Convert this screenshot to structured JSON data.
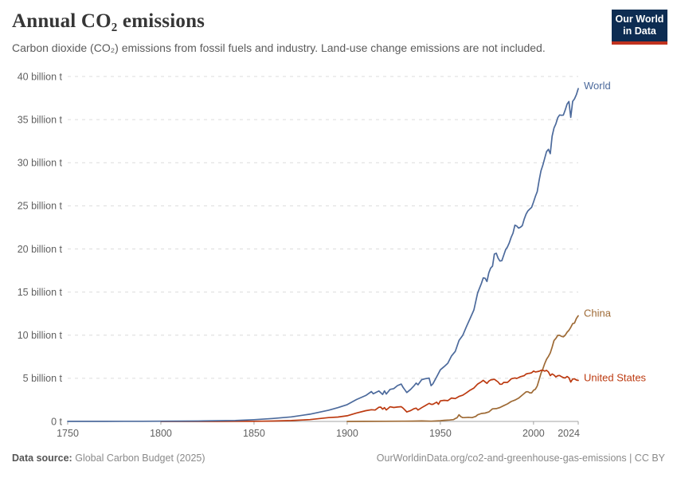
{
  "header": {
    "title": "Annual CO₂ emissions",
    "subtitle": "Carbon dioxide (CO₂) emissions from fossil fuels and industry. Land-use change emissions are not included."
  },
  "logo": {
    "line1": "Our World",
    "line2": "in Data",
    "bg_color": "#0d2c52",
    "accent_color": "#c0321f"
  },
  "footer": {
    "datasource_label": "Data source:",
    "datasource_value": "Global Carbon Budget (2025)",
    "note": "OurWorldinData.org/co2-and-greenhouse-gas-emissions | CC BY"
  },
  "chart_data": {
    "type": "line",
    "title": "Annual CO₂ emissions",
    "xlabel": "",
    "ylabel": "",
    "grid": "horizontal-dashed",
    "legend_position": "end-of-line-labels",
    "x_axis": {
      "min": 1750,
      "max": 2024,
      "ticks": [
        {
          "value": 1750,
          "label": "1750"
        },
        {
          "value": 1800,
          "label": "1800"
        },
        {
          "value": 1850,
          "label": "1850"
        },
        {
          "value": 1900,
          "label": "1900"
        },
        {
          "value": 1950,
          "label": "1950"
        },
        {
          "value": 2000,
          "label": "2000"
        },
        {
          "value": 2024,
          "label": "2024"
        }
      ]
    },
    "y_axis": {
      "min": 0,
      "max": 40,
      "unit": "billion tonnes CO₂",
      "ticks": [
        {
          "value": 0,
          "label": "0 t"
        },
        {
          "value": 5,
          "label": "5 billion t"
        },
        {
          "value": 10,
          "label": "10 billion t"
        },
        {
          "value": 15,
          "label": "15 billion t"
        },
        {
          "value": 20,
          "label": "20 billion t"
        },
        {
          "value": 25,
          "label": "25 billion t"
        },
        {
          "value": 30,
          "label": "30 billion t"
        },
        {
          "value": 35,
          "label": "35 billion t"
        },
        {
          "value": 40,
          "label": "40 billion t"
        }
      ]
    },
    "series": [
      {
        "name": "China",
        "color": "#9e6a35",
        "points": [
          [
            1900,
            0.0
          ],
          [
            1910,
            0.01
          ],
          [
            1920,
            0.02
          ],
          [
            1930,
            0.03
          ],
          [
            1935,
            0.04
          ],
          [
            1940,
            0.06
          ],
          [
            1945,
            0.03
          ],
          [
            1950,
            0.08
          ],
          [
            1952,
            0.13
          ],
          [
            1955,
            0.17
          ],
          [
            1957,
            0.21
          ],
          [
            1958,
            0.33
          ],
          [
            1959,
            0.43
          ],
          [
            1960,
            0.78
          ],
          [
            1961,
            0.55
          ],
          [
            1962,
            0.44
          ],
          [
            1963,
            0.44
          ],
          [
            1965,
            0.48
          ],
          [
            1967,
            0.44
          ],
          [
            1969,
            0.58
          ],
          [
            1970,
            0.77
          ],
          [
            1972,
            0.92
          ],
          [
            1974,
            0.97
          ],
          [
            1976,
            1.1
          ],
          [
            1978,
            1.46
          ],
          [
            1980,
            1.49
          ],
          [
            1982,
            1.62
          ],
          [
            1984,
            1.83
          ],
          [
            1986,
            2.03
          ],
          [
            1988,
            2.31
          ],
          [
            1990,
            2.48
          ],
          [
            1992,
            2.7
          ],
          [
            1994,
            3.06
          ],
          [
            1996,
            3.43
          ],
          [
            1997,
            3.45
          ],
          [
            1998,
            3.32
          ],
          [
            1999,
            3.32
          ],
          [
            2000,
            3.61
          ],
          [
            2001,
            3.73
          ],
          [
            2002,
            4.11
          ],
          [
            2003,
            4.85
          ],
          [
            2004,
            5.58
          ],
          [
            2005,
            6.1
          ],
          [
            2006,
            6.71
          ],
          [
            2007,
            7.21
          ],
          [
            2008,
            7.55
          ],
          [
            2009,
            7.94
          ],
          [
            2010,
            8.6
          ],
          [
            2011,
            9.39
          ],
          [
            2012,
            9.63
          ],
          [
            2013,
            9.98
          ],
          [
            2014,
            10.0
          ],
          [
            2015,
            9.87
          ],
          [
            2016,
            9.81
          ],
          [
            2017,
            10.0
          ],
          [
            2018,
            10.35
          ],
          [
            2019,
            10.57
          ],
          [
            2020,
            10.91
          ],
          [
            2021,
            11.34
          ],
          [
            2022,
            11.4
          ],
          [
            2023,
            11.94
          ],
          [
            2024,
            12.25
          ]
        ]
      },
      {
        "name": "United States",
        "color": "#bc3a10",
        "points": [
          [
            1800,
            0.0
          ],
          [
            1810,
            0.001
          ],
          [
            1820,
            0.001
          ],
          [
            1830,
            0.003
          ],
          [
            1840,
            0.007
          ],
          [
            1850,
            0.02
          ],
          [
            1860,
            0.05
          ],
          [
            1870,
            0.1
          ],
          [
            1880,
            0.21
          ],
          [
            1890,
            0.44
          ],
          [
            1895,
            0.51
          ],
          [
            1900,
            0.66
          ],
          [
            1905,
            0.98
          ],
          [
            1910,
            1.25
          ],
          [
            1913,
            1.36
          ],
          [
            1915,
            1.32
          ],
          [
            1917,
            1.64
          ],
          [
            1918,
            1.66
          ],
          [
            1919,
            1.42
          ],
          [
            1920,
            1.6
          ],
          [
            1921,
            1.33
          ],
          [
            1923,
            1.7
          ],
          [
            1925,
            1.62
          ],
          [
            1927,
            1.67
          ],
          [
            1929,
            1.71
          ],
          [
            1930,
            1.54
          ],
          [
            1932,
            1.1
          ],
          [
            1934,
            1.26
          ],
          [
            1936,
            1.49
          ],
          [
            1937,
            1.54
          ],
          [
            1938,
            1.32
          ],
          [
            1940,
            1.6
          ],
          [
            1942,
            1.85
          ],
          [
            1944,
            2.1
          ],
          [
            1945,
            1.99
          ],
          [
            1946,
            1.99
          ],
          [
            1948,
            2.24
          ],
          [
            1949,
            1.99
          ],
          [
            1950,
            2.38
          ],
          [
            1952,
            2.45
          ],
          [
            1954,
            2.41
          ],
          [
            1956,
            2.72
          ],
          [
            1958,
            2.65
          ],
          [
            1960,
            2.9
          ],
          [
            1962,
            3.04
          ],
          [
            1964,
            3.32
          ],
          [
            1966,
            3.63
          ],
          [
            1968,
            3.87
          ],
          [
            1970,
            4.33
          ],
          [
            1972,
            4.6
          ],
          [
            1973,
            4.77
          ],
          [
            1974,
            4.59
          ],
          [
            1975,
            4.42
          ],
          [
            1976,
            4.67
          ],
          [
            1977,
            4.81
          ],
          [
            1978,
            4.85
          ],
          [
            1979,
            4.89
          ],
          [
            1980,
            4.73
          ],
          [
            1981,
            4.57
          ],
          [
            1982,
            4.31
          ],
          [
            1983,
            4.31
          ],
          [
            1984,
            4.53
          ],
          [
            1985,
            4.53
          ],
          [
            1986,
            4.53
          ],
          [
            1987,
            4.71
          ],
          [
            1988,
            4.93
          ],
          [
            1989,
            5.0
          ],
          [
            1990,
            5.04
          ],
          [
            1991,
            4.99
          ],
          [
            1992,
            5.08
          ],
          [
            1993,
            5.19
          ],
          [
            1994,
            5.25
          ],
          [
            1995,
            5.31
          ],
          [
            1996,
            5.5
          ],
          [
            1997,
            5.56
          ],
          [
            1998,
            5.59
          ],
          [
            1999,
            5.64
          ],
          [
            2000,
            5.84
          ],
          [
            2001,
            5.74
          ],
          [
            2002,
            5.77
          ],
          [
            2003,
            5.82
          ],
          [
            2004,
            5.92
          ],
          [
            2005,
            5.93
          ],
          [
            2006,
            5.84
          ],
          [
            2007,
            5.92
          ],
          [
            2008,
            5.74
          ],
          [
            2009,
            5.31
          ],
          [
            2010,
            5.51
          ],
          [
            2011,
            5.38
          ],
          [
            2012,
            5.16
          ],
          [
            2013,
            5.3
          ],
          [
            2014,
            5.33
          ],
          [
            2015,
            5.19
          ],
          [
            2016,
            5.08
          ],
          [
            2017,
            5.04
          ],
          [
            2018,
            5.21
          ],
          [
            2019,
            5.06
          ],
          [
            2020,
            4.56
          ],
          [
            2021,
            4.91
          ],
          [
            2022,
            4.94
          ],
          [
            2023,
            4.8
          ],
          [
            2024,
            4.76
          ]
        ]
      },
      {
        "name": "World",
        "color": "#4c6a9c",
        "points": [
          [
            1750,
            0.01
          ],
          [
            1760,
            0.01
          ],
          [
            1770,
            0.01
          ],
          [
            1780,
            0.02
          ],
          [
            1790,
            0.02
          ],
          [
            1800,
            0.03
          ],
          [
            1810,
            0.04
          ],
          [
            1820,
            0.05
          ],
          [
            1830,
            0.08
          ],
          [
            1840,
            0.11
          ],
          [
            1850,
            0.2
          ],
          [
            1860,
            0.34
          ],
          [
            1870,
            0.53
          ],
          [
            1880,
            0.84
          ],
          [
            1890,
            1.3
          ],
          [
            1895,
            1.6
          ],
          [
            1900,
            1.95
          ],
          [
            1905,
            2.54
          ],
          [
            1910,
            3.01
          ],
          [
            1913,
            3.46
          ],
          [
            1914,
            3.21
          ],
          [
            1917,
            3.54
          ],
          [
            1919,
            3.13
          ],
          [
            1920,
            3.55
          ],
          [
            1921,
            3.18
          ],
          [
            1923,
            3.71
          ],
          [
            1925,
            3.81
          ],
          [
            1927,
            4.16
          ],
          [
            1929,
            4.33
          ],
          [
            1930,
            3.94
          ],
          [
            1932,
            3.35
          ],
          [
            1934,
            3.71
          ],
          [
            1936,
            4.17
          ],
          [
            1937,
            4.44
          ],
          [
            1938,
            4.25
          ],
          [
            1940,
            4.85
          ],
          [
            1942,
            4.96
          ],
          [
            1944,
            5.03
          ],
          [
            1945,
            4.15
          ],
          [
            1946,
            4.36
          ],
          [
            1948,
            5.16
          ],
          [
            1950,
            5.99
          ],
          [
            1952,
            6.36
          ],
          [
            1954,
            6.74
          ],
          [
            1956,
            7.59
          ],
          [
            1958,
            8.12
          ],
          [
            1960,
            9.39
          ],
          [
            1962,
            9.99
          ],
          [
            1964,
            10.98
          ],
          [
            1966,
            11.95
          ],
          [
            1968,
            12.93
          ],
          [
            1970,
            14.9
          ],
          [
            1972,
            16.0
          ],
          [
            1973,
            16.64
          ],
          [
            1974,
            16.61
          ],
          [
            1975,
            16.23
          ],
          [
            1976,
            17.22
          ],
          [
            1977,
            17.77
          ],
          [
            1978,
            18.01
          ],
          [
            1979,
            19.41
          ],
          [
            1980,
            19.5
          ],
          [
            1981,
            18.93
          ],
          [
            1982,
            18.6
          ],
          [
            1983,
            18.64
          ],
          [
            1984,
            19.26
          ],
          [
            1985,
            19.91
          ],
          [
            1986,
            20.23
          ],
          [
            1987,
            20.7
          ],
          [
            1988,
            21.36
          ],
          [
            1989,
            21.83
          ],
          [
            1990,
            22.76
          ],
          [
            1991,
            22.65
          ],
          [
            1992,
            22.42
          ],
          [
            1993,
            22.52
          ],
          [
            1994,
            22.71
          ],
          [
            1995,
            23.47
          ],
          [
            1996,
            24.04
          ],
          [
            1997,
            24.42
          ],
          [
            1998,
            24.63
          ],
          [
            1999,
            24.83
          ],
          [
            2000,
            25.45
          ],
          [
            2001,
            26.1
          ],
          [
            2002,
            26.64
          ],
          [
            2003,
            27.95
          ],
          [
            2004,
            29.05
          ],
          [
            2005,
            29.74
          ],
          [
            2006,
            30.51
          ],
          [
            2007,
            31.29
          ],
          [
            2008,
            31.56
          ],
          [
            2009,
            31.05
          ],
          [
            2010,
            33.07
          ],
          [
            2011,
            34.03
          ],
          [
            2012,
            34.5
          ],
          [
            2013,
            35.22
          ],
          [
            2014,
            35.54
          ],
          [
            2015,
            35.5
          ],
          [
            2016,
            35.52
          ],
          [
            2017,
            36.1
          ],
          [
            2018,
            36.8
          ],
          [
            2019,
            37.1
          ],
          [
            2020,
            35.26
          ],
          [
            2021,
            37.12
          ],
          [
            2022,
            37.4
          ],
          [
            2023,
            37.9
          ],
          [
            2024,
            38.6
          ]
        ]
      }
    ]
  }
}
